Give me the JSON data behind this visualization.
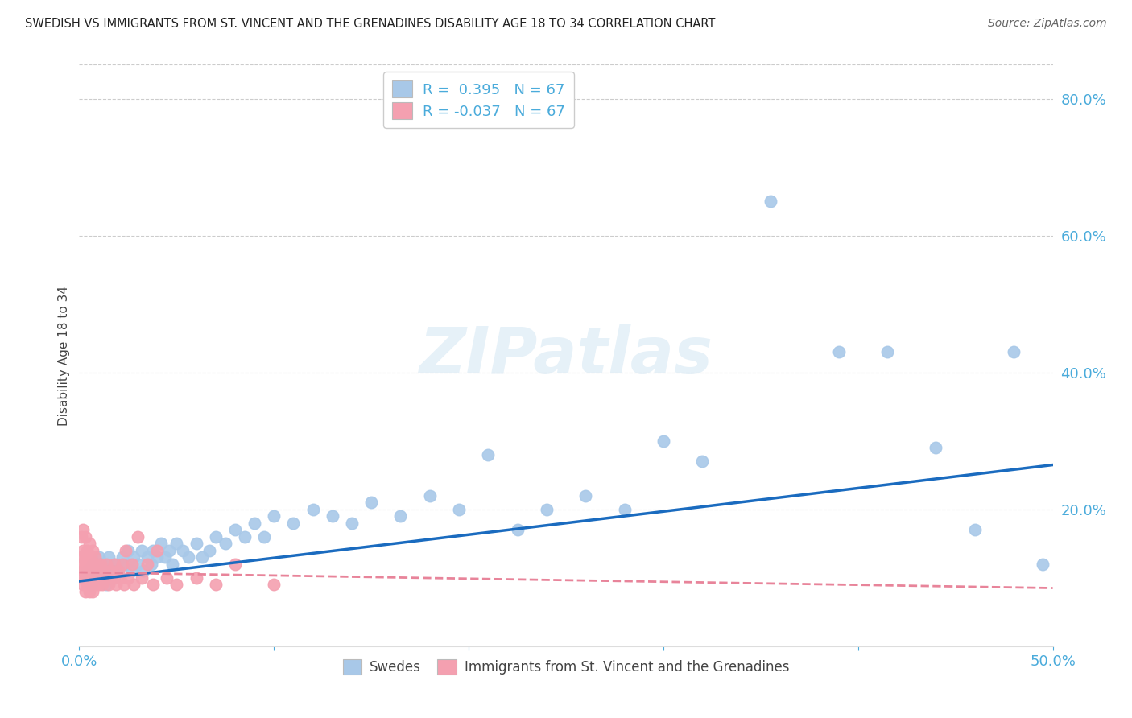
{
  "title": "SWEDISH VS IMMIGRANTS FROM ST. VINCENT AND THE GRENADINES DISABILITY AGE 18 TO 34 CORRELATION CHART",
  "source": "Source: ZipAtlas.com",
  "ylabel": "Disability Age 18 to 34",
  "xlim": [
    0.0,
    0.5
  ],
  "ylim": [
    0.0,
    0.85
  ],
  "xticks": [
    0.0,
    0.1,
    0.2,
    0.3,
    0.4,
    0.5
  ],
  "yticks": [
    0.0,
    0.2,
    0.4,
    0.6,
    0.8
  ],
  "ytick_labels": [
    "",
    "20.0%",
    "40.0%",
    "60.0%",
    "80.0%"
  ],
  "xtick_labels": [
    "0.0%",
    "",
    "",
    "",
    "",
    "50.0%"
  ],
  "watermark": "ZIPatlas",
  "legend_r_blue": "0.395",
  "legend_r_pink": "-0.037",
  "legend_n_blue": "67",
  "legend_n_pink": "67",
  "blue_color": "#a8c8e8",
  "pink_color": "#f4a0b0",
  "line_blue": "#1a6bbf",
  "line_pink": "#e8849a",
  "swedes_x": [
    0.003,
    0.004,
    0.006,
    0.007,
    0.008,
    0.009,
    0.01,
    0.011,
    0.012,
    0.013,
    0.014,
    0.015,
    0.017,
    0.018,
    0.019,
    0.02,
    0.022,
    0.024,
    0.025,
    0.027,
    0.028,
    0.03,
    0.032,
    0.033,
    0.035,
    0.037,
    0.038,
    0.04,
    0.042,
    0.044,
    0.046,
    0.048,
    0.05,
    0.053,
    0.056,
    0.06,
    0.063,
    0.067,
    0.07,
    0.075,
    0.08,
    0.085,
    0.09,
    0.095,
    0.1,
    0.11,
    0.12,
    0.13,
    0.14,
    0.15,
    0.165,
    0.18,
    0.195,
    0.21,
    0.225,
    0.24,
    0.26,
    0.28,
    0.3,
    0.32,
    0.355,
    0.39,
    0.415,
    0.44,
    0.46,
    0.48,
    0.495
  ],
  "swedes_y": [
    0.1,
    0.11,
    0.09,
    0.12,
    0.1,
    0.11,
    0.13,
    0.1,
    0.12,
    0.11,
    0.09,
    0.13,
    0.11,
    0.1,
    0.12,
    0.11,
    0.13,
    0.12,
    0.14,
    0.11,
    0.13,
    0.12,
    0.14,
    0.11,
    0.13,
    0.12,
    0.14,
    0.13,
    0.15,
    0.13,
    0.14,
    0.12,
    0.15,
    0.14,
    0.13,
    0.15,
    0.13,
    0.14,
    0.16,
    0.15,
    0.17,
    0.16,
    0.18,
    0.16,
    0.19,
    0.18,
    0.2,
    0.19,
    0.18,
    0.21,
    0.19,
    0.22,
    0.2,
    0.28,
    0.17,
    0.2,
    0.22,
    0.2,
    0.3,
    0.27,
    0.65,
    0.43,
    0.43,
    0.29,
    0.17,
    0.43,
    0.12
  ],
  "immigrants_x": [
    0.0,
    0.001,
    0.001,
    0.001,
    0.002,
    0.002,
    0.002,
    0.002,
    0.003,
    0.003,
    0.003,
    0.003,
    0.003,
    0.004,
    0.004,
    0.004,
    0.004,
    0.004,
    0.005,
    0.005,
    0.005,
    0.005,
    0.006,
    0.006,
    0.006,
    0.006,
    0.007,
    0.007,
    0.007,
    0.007,
    0.008,
    0.008,
    0.008,
    0.009,
    0.009,
    0.01,
    0.01,
    0.011,
    0.011,
    0.012,
    0.012,
    0.013,
    0.014,
    0.015,
    0.016,
    0.017,
    0.018,
    0.019,
    0.02,
    0.021,
    0.022,
    0.023,
    0.024,
    0.025,
    0.027,
    0.028,
    0.03,
    0.032,
    0.035,
    0.038,
    0.04,
    0.045,
    0.05,
    0.06,
    0.07,
    0.08,
    0.1
  ],
  "immigrants_y": [
    0.12,
    0.1,
    0.13,
    0.16,
    0.09,
    0.14,
    0.11,
    0.17,
    0.08,
    0.12,
    0.1,
    0.13,
    0.16,
    0.09,
    0.11,
    0.14,
    0.1,
    0.13,
    0.08,
    0.12,
    0.1,
    0.15,
    0.09,
    0.11,
    0.13,
    0.1,
    0.08,
    0.12,
    0.1,
    0.14,
    0.09,
    0.11,
    0.13,
    0.1,
    0.12,
    0.09,
    0.11,
    0.1,
    0.12,
    0.09,
    0.11,
    0.1,
    0.12,
    0.09,
    0.11,
    0.1,
    0.12,
    0.09,
    0.11,
    0.1,
    0.12,
    0.09,
    0.14,
    0.1,
    0.12,
    0.09,
    0.16,
    0.1,
    0.12,
    0.09,
    0.14,
    0.1,
    0.09,
    0.1,
    0.09,
    0.12,
    0.09
  ],
  "blue_line_x0": 0.0,
  "blue_line_y0": 0.095,
  "blue_line_x1": 0.5,
  "blue_line_y1": 0.265,
  "pink_line_x0": 0.0,
  "pink_line_y0": 0.108,
  "pink_line_x1": 0.5,
  "pink_line_y1": 0.085
}
